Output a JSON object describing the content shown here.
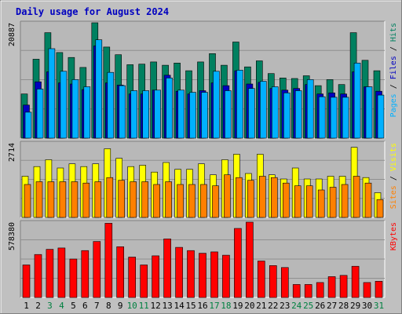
{
  "title": "Daily usage for August 2024",
  "colors": {
    "background": "#c0c0c0",
    "plot_background": "#b8b8b8",
    "title_text": "#0000c0",
    "hits": "#008060",
    "files": "#0000c0",
    "pages": "#00b0ff",
    "visits": "#ffff00",
    "sites": "#ff8000",
    "kbytes": "#ff0000",
    "weekend_label": "#008040",
    "weekday_label": "#000000"
  },
  "chart_data": [
    {
      "type": "bar",
      "panel": "hits-files-pages",
      "ylabel_parts": [
        "Pages",
        "Files",
        "Hits"
      ],
      "ymax_label": "20887",
      "ylim": [
        0,
        20887
      ],
      "categories": [
        "1",
        "2",
        "3",
        "4",
        "5",
        "6",
        "7",
        "8",
        "9",
        "10",
        "11",
        "12",
        "13",
        "14",
        "15",
        "16",
        "17",
        "18",
        "19",
        "20",
        "21",
        "22",
        "23",
        "24",
        "25",
        "26",
        "27",
        "28",
        "29",
        "30",
        "31"
      ],
      "series": [
        {
          "name": "Hits",
          "values": [
            8000,
            14300,
            19100,
            15500,
            14600,
            12800,
            20887,
            16500,
            15100,
            13300,
            13400,
            13800,
            13200,
            13600,
            12200,
            13800,
            15300,
            13200,
            17400,
            12900,
            14000,
            11700,
            10900,
            10800,
            11300,
            9500,
            10600,
            9700,
            19100,
            14100,
            12200
          ]
        },
        {
          "name": "Files",
          "values": [
            6000,
            10200,
            12000,
            10000,
            9800,
            8800,
            16700,
            10000,
            9600,
            8000,
            8000,
            8700,
            11400,
            8500,
            8000,
            8600,
            10000,
            9500,
            12200,
            9800,
            10100,
            9000,
            8700,
            9000,
            9700,
            8000,
            8200,
            8000,
            12000,
            9300,
            8500
          ]
        },
        {
          "name": "Pages",
          "values": [
            4700,
            8900,
            16200,
            12100,
            10600,
            9300,
            17800,
            11900,
            9500,
            8600,
            8600,
            8700,
            10900,
            8700,
            8300,
            8300,
            12100,
            8600,
            12300,
            9000,
            10300,
            9300,
            8200,
            8600,
            10600,
            7500,
            7400,
            7400,
            13600,
            9300,
            7800
          ]
        }
      ]
    },
    {
      "type": "bar",
      "panel": "sites-visits",
      "ylabel_parts": [
        "Sites",
        "Visits"
      ],
      "ymax_label": "2714",
      "ylim": [
        0,
        2714
      ],
      "categories": [
        "1",
        "2",
        "3",
        "4",
        "5",
        "6",
        "7",
        "8",
        "9",
        "10",
        "11",
        "12",
        "13",
        "14",
        "15",
        "16",
        "17",
        "18",
        "19",
        "20",
        "21",
        "22",
        "23",
        "24",
        "25",
        "26",
        "27",
        "28",
        "29",
        "30",
        "31"
      ],
      "series": [
        {
          "name": "Visits",
          "values": [
            1500,
            1850,
            2100,
            1800,
            1950,
            1850,
            1950,
            2500,
            2150,
            1850,
            1900,
            1650,
            2000,
            1750,
            1750,
            1950,
            1550,
            2100,
            2300,
            1600,
            2300,
            1550,
            1400,
            1800,
            1400,
            1400,
            1500,
            1500,
            2550,
            1450,
            900
          ]
        },
        {
          "name": "Sites",
          "values": [
            1200,
            1300,
            1300,
            1300,
            1300,
            1250,
            1300,
            1450,
            1350,
            1300,
            1300,
            1200,
            1300,
            1200,
            1200,
            1200,
            1150,
            1550,
            1450,
            1350,
            1500,
            1450,
            1250,
            1150,
            1150,
            1000,
            1100,
            1200,
            1500,
            1250,
            650
          ]
        }
      ]
    },
    {
      "type": "bar",
      "panel": "kbytes",
      "ylabel_parts": [
        "KBytes"
      ],
      "ymax_label": "578380",
      "ylim": [
        0,
        578380
      ],
      "categories": [
        "1",
        "2",
        "3",
        "4",
        "5",
        "6",
        "7",
        "8",
        "9",
        "10",
        "11",
        "12",
        "13",
        "14",
        "15",
        "16",
        "17",
        "18",
        "19",
        "20",
        "21",
        "22",
        "23",
        "24",
        "25",
        "26",
        "27",
        "28",
        "29",
        "30",
        "31"
      ],
      "series": [
        {
          "name": "KBytes",
          "values": [
            250000,
            330000,
            370000,
            380000,
            295000,
            360000,
            430000,
            570000,
            390000,
            310000,
            250000,
            320000,
            450000,
            385000,
            360000,
            340000,
            350000,
            325000,
            530000,
            578380,
            280000,
            245000,
            230000,
            100000,
            100000,
            115000,
            160000,
            170000,
            240000,
            115000,
            125000
          ]
        }
      ]
    }
  ],
  "x_labels": [
    {
      "text": "1",
      "weekend": false
    },
    {
      "text": "2",
      "weekend": false
    },
    {
      "text": "3",
      "weekend": true
    },
    {
      "text": "4",
      "weekend": true
    },
    {
      "text": "5",
      "weekend": false
    },
    {
      "text": "6",
      "weekend": false
    },
    {
      "text": "7",
      "weekend": false
    },
    {
      "text": "8",
      "weekend": false
    },
    {
      "text": "9",
      "weekend": false
    },
    {
      "text": "10",
      "weekend": true
    },
    {
      "text": "11",
      "weekend": true
    },
    {
      "text": "12",
      "weekend": false
    },
    {
      "text": "13",
      "weekend": false
    },
    {
      "text": "14",
      "weekend": false
    },
    {
      "text": "15",
      "weekend": false
    },
    {
      "text": "16",
      "weekend": false
    },
    {
      "text": "17",
      "weekend": true
    },
    {
      "text": "18",
      "weekend": true
    },
    {
      "text": "19",
      "weekend": false
    },
    {
      "text": "20",
      "weekend": false
    },
    {
      "text": "21",
      "weekend": false
    },
    {
      "text": "22",
      "weekend": false
    },
    {
      "text": "23",
      "weekend": false
    },
    {
      "text": "24",
      "weekend": true
    },
    {
      "text": "25",
      "weekend": true
    },
    {
      "text": "26",
      "weekend": false
    },
    {
      "text": "27",
      "weekend": false
    },
    {
      "text": "28",
      "weekend": false
    },
    {
      "text": "29",
      "weekend": false
    },
    {
      "text": "30",
      "weekend": false
    },
    {
      "text": "31",
      "weekend": true
    }
  ]
}
